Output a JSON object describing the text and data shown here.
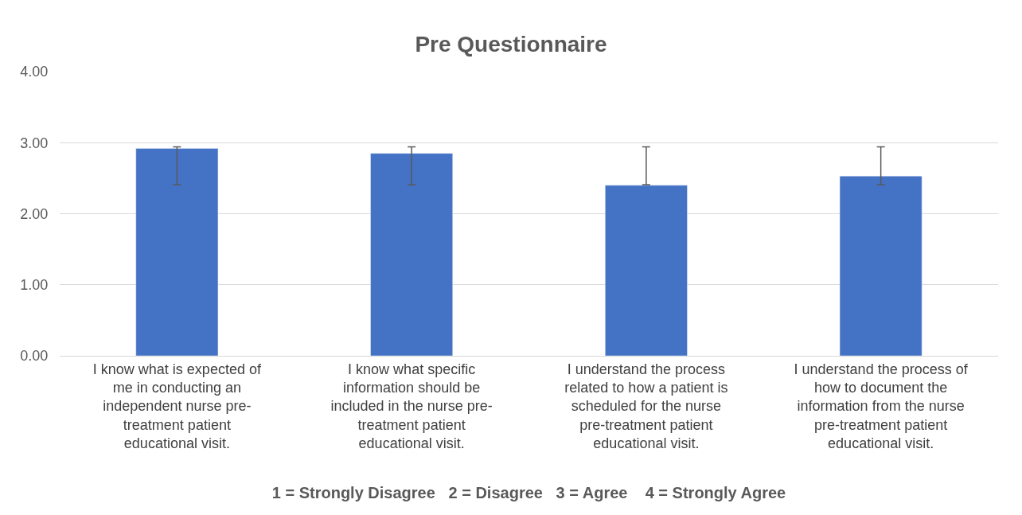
{
  "chart_data": {
    "type": "bar",
    "title": "Pre Questionnaire",
    "xlabel": "1 = Strongly Disagree   2 = Disagree   3 = Agree    4 = Strongly Agree",
    "categories": [
      "I know what is expected of me in conducting an independent nurse pre-treatment patient educational visit.",
      "I know what specific information should be included in the nurse pre-treatment patient educational visit.",
      "I understand the process related to how a patient is scheduled for the nurse pre-treatment patient educational visit.",
      "I understand the process of how to document the information from the nurse pre-treatment patient educational visit."
    ],
    "values": [
      2.92,
      2.85,
      2.4,
      2.53
    ],
    "errors": [
      [
        2.41,
        2.94
      ],
      [
        2.41,
        2.94
      ],
      [
        2.41,
        2.94
      ],
      [
        2.41,
        2.94
      ]
    ],
    "color": "#4472c4",
    "ylim": [
      0,
      4
    ],
    "yticks": [
      {
        "value": 0,
        "label": "0.00"
      },
      {
        "value": 1,
        "label": "1.00"
      },
      {
        "value": 2,
        "label": "2.00"
      },
      {
        "value": 3,
        "label": "3.00"
      },
      {
        "value": 4,
        "label": "4.00"
      }
    ],
    "grid": "y"
  }
}
